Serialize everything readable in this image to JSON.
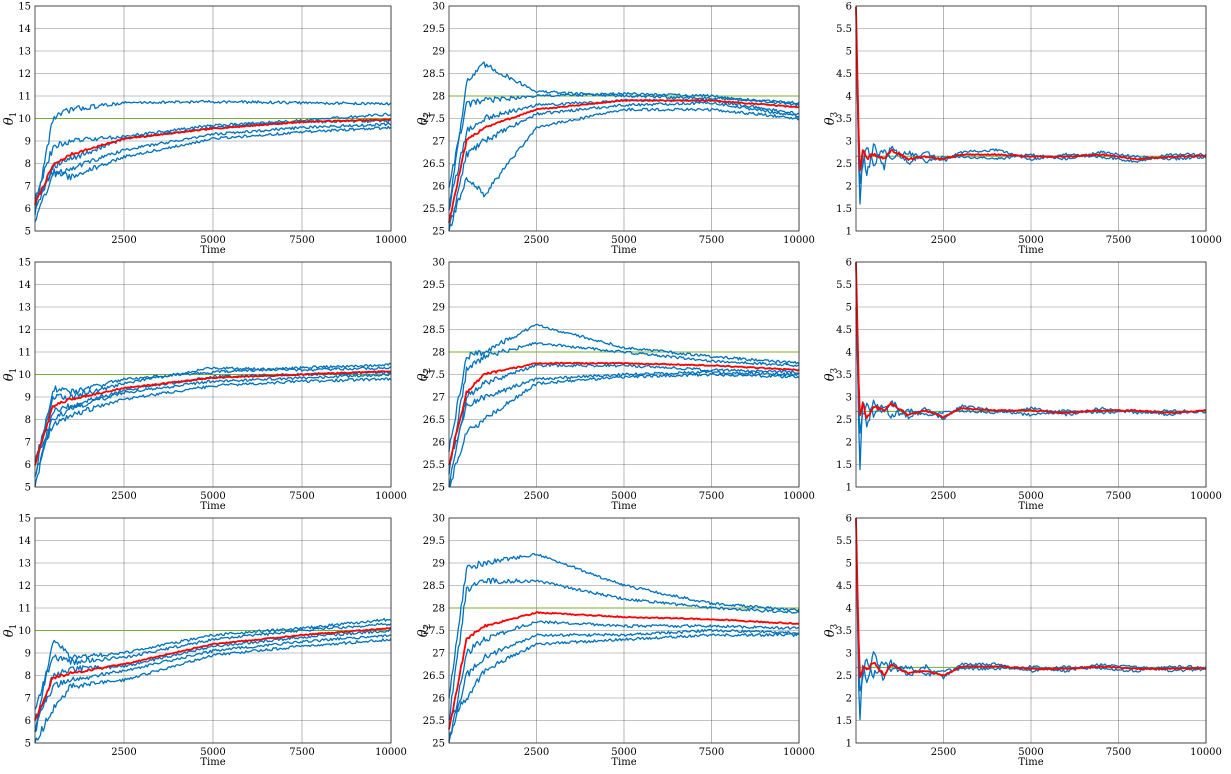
{
  "figure": {
    "xlabel": "Time",
    "colors": {
      "chains": "#0072BD",
      "mean": "#FF0000",
      "truth": "#77AC30",
      "grid": "#262626",
      "background": "#FFFFFF"
    },
    "legend": "none"
  },
  "chart_data": [
    {
      "type": "line",
      "row": 1,
      "col": 1,
      "ylabel": "θ1",
      "ysub": "1",
      "xlabel": "Time",
      "xlim": [
        0,
        10000
      ],
      "ylim": [
        5,
        15
      ],
      "xticks": [
        2500,
        5000,
        7500,
        10000
      ],
      "yticks": [
        5,
        6,
        7,
        8,
        9,
        10,
        11,
        12,
        13,
        14,
        15
      ],
      "grid": true,
      "true_value": 10,
      "x": [
        0,
        500,
        1000,
        2500,
        5000,
        7500,
        10000
      ],
      "series": [
        {
          "role": "mean",
          "values": [
            6.2,
            7.9,
            8.4,
            9.1,
            9.55,
            9.85,
            9.95
          ]
        },
        {
          "role": "chain",
          "values": [
            5.8,
            10.0,
            10.4,
            10.7,
            10.75,
            10.7,
            10.65
          ]
        },
        {
          "role": "chain",
          "values": [
            6.5,
            8.7,
            9.0,
            9.2,
            9.7,
            9.9,
            10.2
          ]
        },
        {
          "role": "chain",
          "values": [
            6.0,
            7.9,
            8.2,
            9.1,
            9.6,
            9.85,
            9.9
          ]
        },
        {
          "role": "chain",
          "values": [
            5.5,
            7.5,
            7.8,
            8.6,
            9.3,
            9.6,
            9.75
          ]
        },
        {
          "role": "chain",
          "values": [
            6.3,
            7.6,
            7.4,
            8.3,
            9.1,
            9.4,
            9.6
          ]
        }
      ]
    },
    {
      "type": "line",
      "row": 1,
      "col": 2,
      "ylabel": "θ2",
      "ysub": "2",
      "xlabel": "Time",
      "xlim": [
        0,
        10000
      ],
      "ylim": [
        25,
        30
      ],
      "xticks": [
        2500,
        5000,
        7500,
        10000
      ],
      "yticks": [
        25,
        25.5,
        26,
        26.5,
        27,
        27.5,
        28,
        28.5,
        29,
        29.5,
        30
      ],
      "grid": true,
      "true_value": 28,
      "x": [
        0,
        500,
        1000,
        2500,
        5000,
        7500,
        10000
      ],
      "series": [
        {
          "role": "mean",
          "values": [
            25.2,
            27.0,
            27.3,
            27.7,
            27.9,
            27.9,
            27.75
          ]
        },
        {
          "role": "chain",
          "values": [
            25.5,
            28.3,
            28.7,
            28.1,
            28.0,
            27.95,
            27.85
          ]
        },
        {
          "role": "chain",
          "values": [
            26.0,
            27.8,
            27.9,
            28.0,
            28.05,
            28.0,
            27.8
          ]
        },
        {
          "role": "chain",
          "values": [
            25.5,
            27.2,
            27.5,
            27.8,
            27.9,
            27.9,
            27.6
          ]
        },
        {
          "role": "chain",
          "values": [
            25.0,
            26.7,
            27.0,
            27.6,
            27.8,
            27.85,
            27.55
          ]
        },
        {
          "role": "chain",
          "values": [
            25.0,
            26.2,
            25.8,
            27.3,
            27.7,
            27.7,
            27.5
          ]
        }
      ]
    },
    {
      "type": "line",
      "row": 1,
      "col": 3,
      "ylabel": "θ3",
      "ysub": "3",
      "xlabel": "Time",
      "xlim": [
        0,
        10000
      ],
      "ylim": [
        1,
        6
      ],
      "xticks": [
        2500,
        5000,
        7500,
        10000
      ],
      "yticks": [
        1,
        1.5,
        2,
        2.5,
        3,
        3.5,
        4,
        4.5,
        5,
        5.5,
        6
      ],
      "grid": true,
      "true_value": 2.66,
      "x": [
        0,
        100,
        200,
        300,
        500,
        800,
        1000,
        1500,
        2000,
        2500,
        3000,
        4000,
        5000,
        6000,
        7000,
        8000,
        9000,
        10000
      ],
      "series": [
        {
          "role": "mean",
          "values": [
            6.0,
            2.3,
            2.8,
            2.6,
            2.7,
            2.6,
            2.8,
            2.6,
            2.65,
            2.6,
            2.7,
            2.7,
            2.65,
            2.65,
            2.7,
            2.6,
            2.65,
            2.67
          ]
        },
        {
          "role": "chain",
          "values": [
            6.0,
            1.4,
            3.0,
            2.2,
            2.9,
            2.4,
            2.9,
            2.5,
            2.75,
            2.55,
            2.75,
            2.8,
            2.6,
            2.7,
            2.65,
            2.55,
            2.7,
            2.7
          ]
        },
        {
          "role": "chain",
          "values": [
            5.5,
            2.0,
            2.5,
            2.9,
            2.5,
            2.8,
            2.6,
            2.75,
            2.55,
            2.65,
            2.65,
            2.6,
            2.7,
            2.6,
            2.75,
            2.65,
            2.6,
            2.65
          ]
        }
      ]
    },
    {
      "type": "line",
      "row": 2,
      "col": 1,
      "ylabel": "θ1",
      "ysub": "1",
      "xlabel": "Time",
      "xlim": [
        0,
        10000
      ],
      "ylim": [
        5,
        15
      ],
      "xticks": [
        2500,
        5000,
        7500,
        10000
      ],
      "yticks": [
        5,
        6,
        7,
        8,
        9,
        10,
        11,
        12,
        13,
        14,
        15
      ],
      "grid": true,
      "true_value": 10,
      "x": [
        0,
        500,
        1000,
        2500,
        5000,
        7500,
        10000
      ],
      "series": [
        {
          "role": "mean",
          "values": [
            6.0,
            8.6,
            8.9,
            9.4,
            9.85,
            10.0,
            10.15
          ]
        },
        {
          "role": "chain",
          "values": [
            5.5,
            9.4,
            9.2,
            9.8,
            10.1,
            10.3,
            10.45
          ]
        },
        {
          "role": "chain",
          "values": [
            6.0,
            9.0,
            9.0,
            9.6,
            10.3,
            10.2,
            10.3
          ]
        },
        {
          "role": "chain",
          "values": [
            5.0,
            8.4,
            8.6,
            9.3,
            9.9,
            10.0,
            10.1
          ]
        },
        {
          "role": "chain",
          "values": [
            6.2,
            8.0,
            8.5,
            9.2,
            9.7,
            9.85,
            10.0
          ]
        },
        {
          "role": "chain",
          "values": [
            5.5,
            7.8,
            8.2,
            8.9,
            9.5,
            9.7,
            9.8
          ]
        }
      ]
    },
    {
      "type": "line",
      "row": 2,
      "col": 2,
      "ylabel": "θ2",
      "ysub": "2",
      "xlabel": "Time",
      "xlim": [
        0,
        10000
      ],
      "ylim": [
        25,
        30
      ],
      "xticks": [
        2500,
        5000,
        7500,
        10000
      ],
      "yticks": [
        25,
        25.5,
        26,
        26.5,
        27,
        27.5,
        28,
        28.5,
        29,
        29.5,
        30
      ],
      "grid": true,
      "true_value": 28,
      "x": [
        0,
        500,
        1000,
        2500,
        5000,
        7500,
        10000
      ],
      "series": [
        {
          "role": "mean",
          "values": [
            25.5,
            27.1,
            27.5,
            27.75,
            27.75,
            27.7,
            27.6
          ]
        },
        {
          "role": "chain",
          "values": [
            25.8,
            27.9,
            28.0,
            28.6,
            28.1,
            27.9,
            27.75
          ]
        },
        {
          "role": "chain",
          "values": [
            25.3,
            27.6,
            27.9,
            28.2,
            28.0,
            27.8,
            27.7
          ]
        },
        {
          "role": "chain",
          "values": [
            25.0,
            27.0,
            27.3,
            27.7,
            27.7,
            27.6,
            27.55
          ]
        },
        {
          "role": "chain",
          "values": [
            25.5,
            26.8,
            27.0,
            27.4,
            27.5,
            27.55,
            27.5
          ]
        },
        {
          "role": "chain",
          "values": [
            25.0,
            26.2,
            26.5,
            27.3,
            27.45,
            27.5,
            27.45
          ]
        }
      ]
    },
    {
      "type": "line",
      "row": 2,
      "col": 3,
      "ylabel": "θ3",
      "ysub": "3",
      "xlabel": "Time",
      "xlim": [
        0,
        10000
      ],
      "ylim": [
        1,
        6
      ],
      "xticks": [
        2500,
        5000,
        7500,
        10000
      ],
      "yticks": [
        1,
        1.5,
        2,
        2.5,
        3,
        3.5,
        4,
        4.5,
        5,
        5.5,
        6
      ],
      "grid": true,
      "true_value": 2.68,
      "x": [
        0,
        100,
        200,
        300,
        500,
        800,
        1000,
        1500,
        2000,
        2500,
        3000,
        4000,
        5000,
        6000,
        7000,
        8000,
        9000,
        10000
      ],
      "series": [
        {
          "role": "mean",
          "values": [
            6.0,
            2.5,
            2.9,
            2.5,
            2.8,
            2.7,
            2.85,
            2.6,
            2.7,
            2.55,
            2.75,
            2.7,
            2.7,
            2.65,
            2.7,
            2.7,
            2.65,
            2.7
          ]
        },
        {
          "role": "chain",
          "values": [
            6.0,
            1.2,
            3.0,
            2.3,
            2.9,
            2.6,
            2.9,
            2.55,
            2.75,
            2.5,
            2.8,
            2.7,
            2.6,
            2.7,
            2.65,
            2.7,
            2.6,
            2.72
          ]
        },
        {
          "role": "chain",
          "values": [
            5.0,
            2.2,
            2.6,
            2.9,
            2.6,
            2.8,
            2.6,
            2.7,
            2.6,
            2.65,
            2.7,
            2.65,
            2.75,
            2.6,
            2.75,
            2.65,
            2.7,
            2.66
          ]
        }
      ]
    },
    {
      "type": "line",
      "row": 3,
      "col": 1,
      "ylabel": "θ1",
      "ysub": "1",
      "xlabel": "Time",
      "xlim": [
        0,
        10000
      ],
      "ylim": [
        5,
        15
      ],
      "xticks": [
        2500,
        5000,
        7500,
        10000
      ],
      "yticks": [
        5,
        6,
        7,
        8,
        9,
        10,
        11,
        12,
        13,
        14,
        15
      ],
      "grid": true,
      "true_value": 10,
      "x": [
        0,
        500,
        1000,
        2500,
        5000,
        7500,
        10000
      ],
      "series": [
        {
          "role": "mean",
          "values": [
            6.0,
            7.9,
            8.1,
            8.5,
            9.4,
            9.8,
            10.1
          ]
        },
        {
          "role": "chain",
          "values": [
            5.5,
            9.6,
            8.8,
            9.0,
            9.8,
            10.1,
            10.5
          ]
        },
        {
          "role": "chain",
          "values": [
            6.5,
            8.8,
            8.6,
            8.8,
            9.6,
            10.0,
            10.3
          ]
        },
        {
          "role": "chain",
          "values": [
            5.5,
            8.0,
            8.3,
            8.4,
            9.3,
            9.7,
            10.0
          ]
        },
        {
          "role": "chain",
          "values": [
            6.0,
            7.5,
            7.8,
            8.2,
            9.1,
            9.5,
            9.8
          ]
        },
        {
          "role": "chain",
          "values": [
            5.0,
            6.5,
            7.5,
            7.8,
            8.9,
            9.3,
            9.6
          ]
        }
      ]
    },
    {
      "type": "line",
      "row": 3,
      "col": 2,
      "ylabel": "θ2",
      "ysub": "2",
      "xlabel": "Time",
      "xlim": [
        0,
        10000
      ],
      "ylim": [
        25,
        30
      ],
      "xticks": [
        2500,
        5000,
        7500,
        10000
      ],
      "yticks": [
        25,
        25.5,
        26,
        26.5,
        27,
        27.5,
        28,
        28.5,
        29,
        29.5,
        30
      ],
      "grid": true,
      "true_value": 28,
      "x": [
        0,
        500,
        1000,
        2500,
        5000,
        7500,
        10000
      ],
      "series": [
        {
          "role": "mean",
          "values": [
            25.3,
            27.3,
            27.6,
            27.9,
            27.8,
            27.75,
            27.65
          ]
        },
        {
          "role": "chain",
          "values": [
            26.0,
            28.9,
            29.0,
            29.2,
            28.5,
            28.1,
            27.95
          ]
        },
        {
          "role": "chain",
          "values": [
            25.5,
            28.4,
            28.6,
            28.6,
            28.2,
            28.0,
            27.9
          ]
        },
        {
          "role": "chain",
          "values": [
            25.0,
            27.0,
            27.3,
            27.7,
            27.6,
            27.6,
            27.55
          ]
        },
        {
          "role": "chain",
          "values": [
            25.0,
            26.5,
            26.9,
            27.4,
            27.4,
            27.5,
            27.45
          ]
        },
        {
          "role": "chain",
          "values": [
            25.5,
            26.0,
            26.6,
            27.2,
            27.3,
            27.4,
            27.4
          ]
        }
      ]
    },
    {
      "type": "line",
      "row": 3,
      "col": 3,
      "ylabel": "θ3",
      "ysub": "3",
      "xlabel": "Time",
      "xlim": [
        0,
        10000
      ],
      "ylim": [
        1,
        6
      ],
      "xticks": [
        2500,
        5000,
        7500,
        10000
      ],
      "yticks": [
        1,
        1.5,
        2,
        2.5,
        3,
        3.5,
        4,
        4.5,
        5,
        5.5,
        6
      ],
      "grid": true,
      "true_value": 2.68,
      "x": [
        0,
        100,
        200,
        300,
        500,
        800,
        1000,
        1500,
        2000,
        2500,
        3000,
        4000,
        5000,
        6000,
        7000,
        8000,
        9000,
        10000
      ],
      "series": [
        {
          "role": "mean",
          "values": [
            6.0,
            2.4,
            2.7,
            2.6,
            2.8,
            2.5,
            2.75,
            2.55,
            2.6,
            2.5,
            2.7,
            2.7,
            2.65,
            2.65,
            2.7,
            2.65,
            2.65,
            2.66
          ]
        },
        {
          "role": "chain",
          "values": [
            6.0,
            1.2,
            2.9,
            2.3,
            3.0,
            2.4,
            2.8,
            2.5,
            2.7,
            2.45,
            2.75,
            2.75,
            2.6,
            2.7,
            2.65,
            2.6,
            2.7,
            2.68
          ]
        },
        {
          "role": "chain",
          "values": [
            5.5,
            2.0,
            2.5,
            2.9,
            2.5,
            2.8,
            2.6,
            2.7,
            2.5,
            2.6,
            2.65,
            2.65,
            2.7,
            2.6,
            2.75,
            2.7,
            2.6,
            2.64
          ]
        }
      ]
    }
  ]
}
